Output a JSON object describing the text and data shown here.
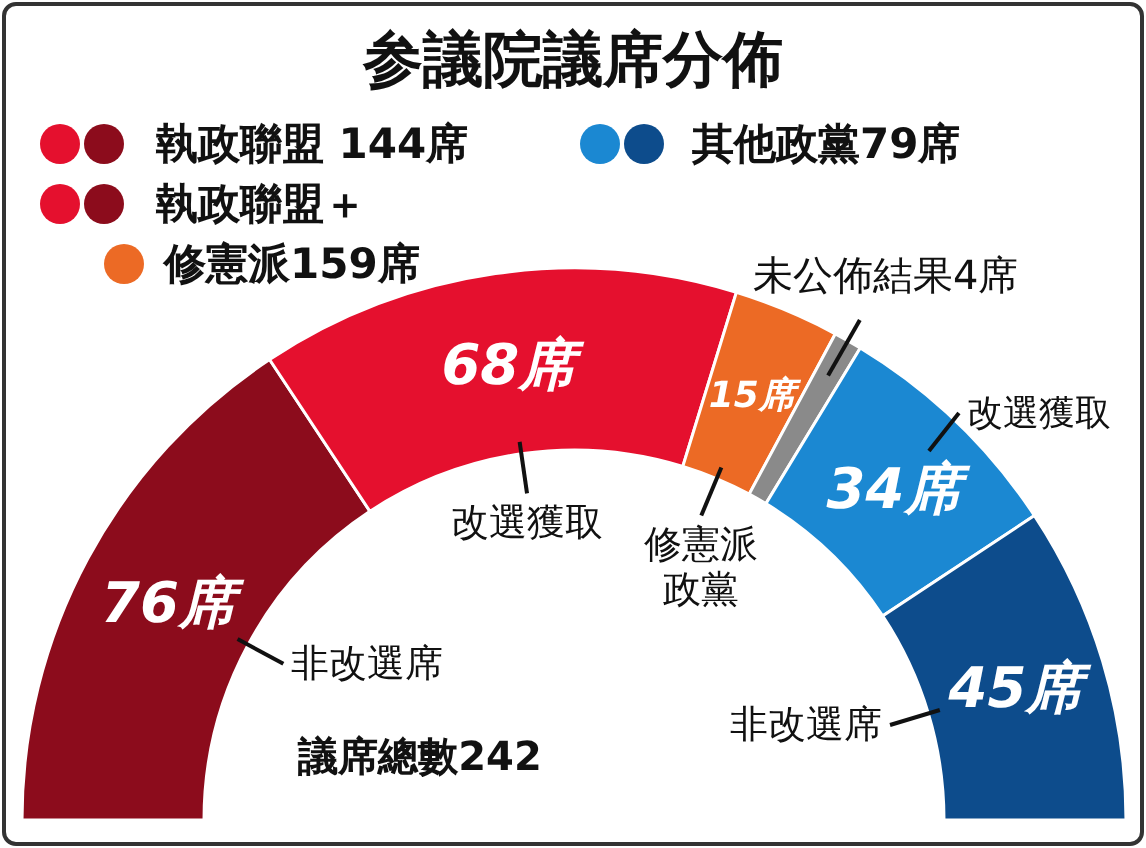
{
  "chart_data": {
    "type": "donut",
    "title": "参議院議席分佈",
    "categories": [
      "非改選席",
      "改選獲取",
      "修憲派政黨",
      "未公佈結果",
      "改選獲取",
      "非改選席"
    ],
    "values": [
      76,
      68,
      15,
      4,
      34,
      45
    ],
    "value_labels": [
      "76席",
      "68席",
      "15席",
      "4席",
      "34席",
      "45席"
    ],
    "colors": [
      "#8c0c1c",
      "#e5102e",
      "#ec6a25",
      "#8a8a8a",
      "#1b88d2",
      "#0d4c8c"
    ],
    "annotations": [
      "執政聯盟 144席",
      "執政聯盟＋",
      "修憲派159席",
      "其他政黨79席",
      "議席總數242"
    ]
  }
}
